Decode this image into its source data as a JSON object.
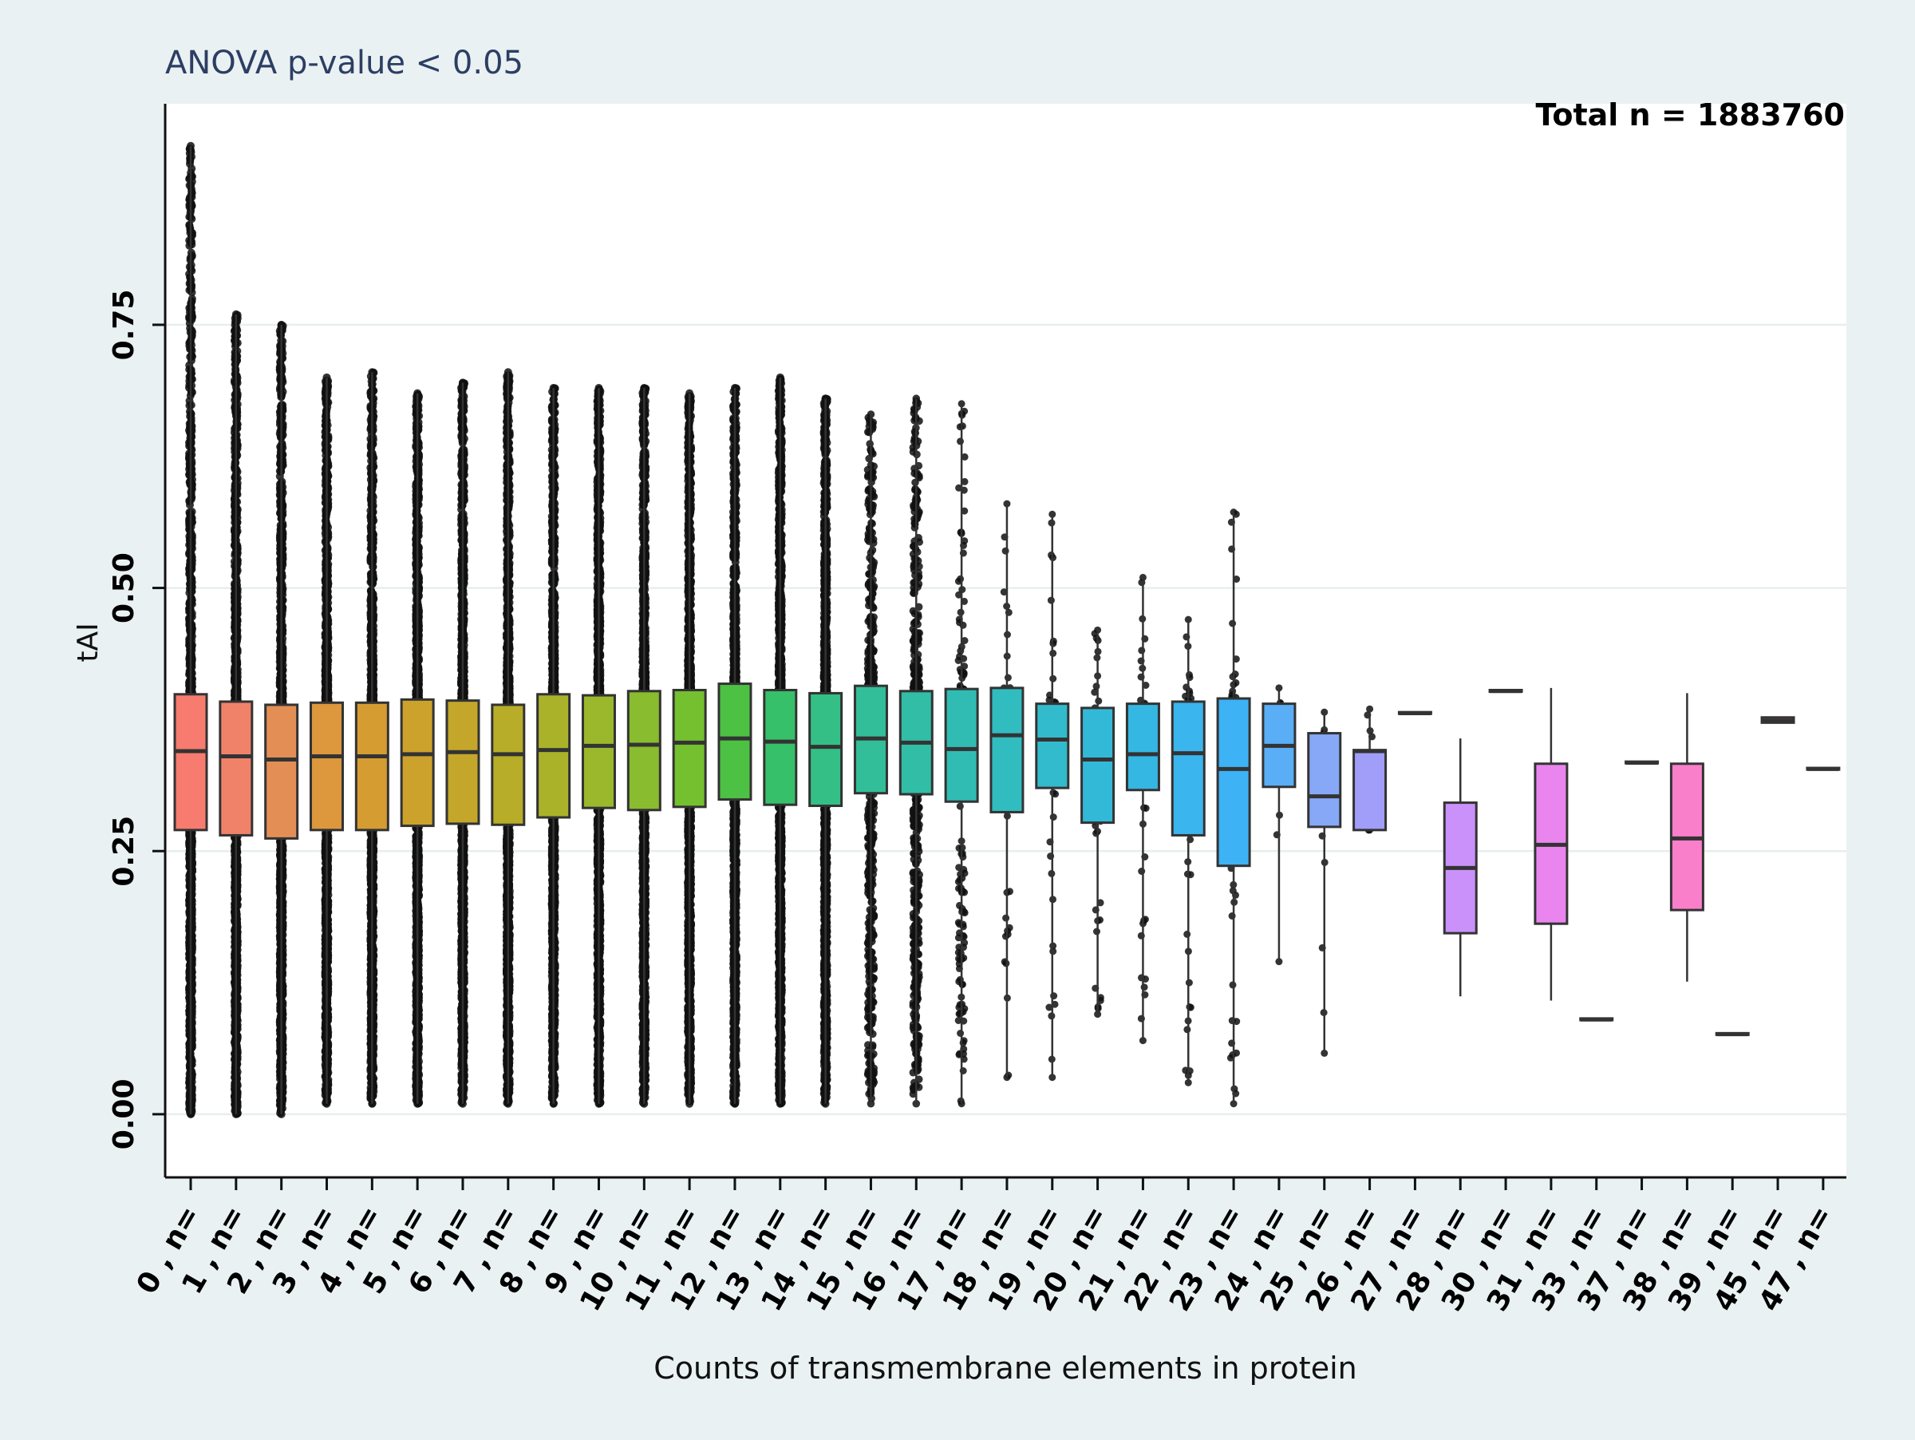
{
  "chart_data": {
    "type": "boxplot",
    "title": "ANOVA  p-value < 0.05",
    "annotation": "Total n = 1883760",
    "xlabel": "Counts of transmembrane elements in protein",
    "ylabel": "tAI",
    "ylim": [
      -0.06,
      0.96
    ],
    "yticks": [
      0.0,
      0.25,
      0.5,
      0.75
    ],
    "ytick_labels": [
      "0.00",
      "0.25",
      "0.50",
      "0.75"
    ],
    "grid": "horizontal",
    "categories": [
      "0 , n=",
      "1 , n=",
      "2 , n=",
      "3 , n=",
      "4 , n=",
      "5 , n=",
      "6 , n=",
      "7 , n=",
      "8 , n=",
      "9 , n=",
      "10 , n=",
      "11 , n=",
      "12 , n=",
      "13 , n=",
      "14 , n=",
      "15 , n=",
      "16 , n=",
      "17 , n=",
      "18 , n=",
      "19 , n=",
      "20 , n=",
      "21 , n=",
      "22 , n=",
      "23 , n=",
      "24 , n=",
      "25 , n=",
      "26 , n=",
      "27 , n=",
      "28 , n=",
      "30 , n=",
      "31 , n=",
      "33 , n=",
      "37 , n=",
      "38 , n=",
      "39 , n=",
      "45 , n=",
      "47 , n="
    ],
    "boxes": [
      {
        "q1": 0.27,
        "median": 0.345,
        "q3": 0.399,
        "pmin": 0.0,
        "pmax": 0.92,
        "color": "#f77b6e",
        "density": "dense"
      },
      {
        "q1": 0.265,
        "median": 0.34,
        "q3": 0.392,
        "pmin": 0.0,
        "pmax": 0.76,
        "color": "#f0826a",
        "density": "dense"
      },
      {
        "q1": 0.262,
        "median": 0.337,
        "q3": 0.389,
        "pmin": 0.0,
        "pmax": 0.75,
        "color": "#e38e55",
        "density": "dense"
      },
      {
        "q1": 0.27,
        "median": 0.34,
        "q3": 0.391,
        "pmin": 0.01,
        "pmax": 0.7,
        "color": "#dd973c",
        "density": "dense"
      },
      {
        "q1": 0.27,
        "median": 0.34,
        "q3": 0.391,
        "pmin": 0.01,
        "pmax": 0.705,
        "color": "#d59c32",
        "density": "dense"
      },
      {
        "q1": 0.274,
        "median": 0.342,
        "q3": 0.394,
        "pmin": 0.01,
        "pmax": 0.685,
        "color": "#cda22c",
        "density": "dense"
      },
      {
        "q1": 0.276,
        "median": 0.344,
        "q3": 0.393,
        "pmin": 0.01,
        "pmax": 0.695,
        "color": "#c4a72a",
        "density": "dense"
      },
      {
        "q1": 0.275,
        "median": 0.342,
        "q3": 0.389,
        "pmin": 0.01,
        "pmax": 0.705,
        "color": "#b8ad28",
        "density": "dense"
      },
      {
        "q1": 0.282,
        "median": 0.346,
        "q3": 0.399,
        "pmin": 0.01,
        "pmax": 0.69,
        "color": "#aab22a",
        "density": "dense"
      },
      {
        "q1": 0.291,
        "median": 0.35,
        "q3": 0.398,
        "pmin": 0.01,
        "pmax": 0.69,
        "color": "#9bb82c",
        "density": "dense"
      },
      {
        "q1": 0.289,
        "median": 0.351,
        "q3": 0.402,
        "pmin": 0.01,
        "pmax": 0.69,
        "color": "#89bc2e",
        "density": "dense"
      },
      {
        "q1": 0.292,
        "median": 0.353,
        "q3": 0.403,
        "pmin": 0.01,
        "pmax": 0.685,
        "color": "#74c02f",
        "density": "dense"
      },
      {
        "q1": 0.299,
        "median": 0.357,
        "q3": 0.409,
        "pmin": 0.01,
        "pmax": 0.69,
        "color": "#4cc143",
        "density": "dense"
      },
      {
        "q1": 0.294,
        "median": 0.354,
        "q3": 0.403,
        "pmin": 0.01,
        "pmax": 0.7,
        "color": "#37c06a",
        "density": "dense"
      },
      {
        "q1": 0.293,
        "median": 0.349,
        "q3": 0.4,
        "pmin": 0.01,
        "pmax": 0.68,
        "color": "#33bf85",
        "density": "dense"
      },
      {
        "q1": 0.305,
        "median": 0.357,
        "q3": 0.407,
        "pmin": 0.01,
        "pmax": 0.665,
        "color": "#32be98",
        "density": "medium"
      },
      {
        "q1": 0.304,
        "median": 0.353,
        "q3": 0.402,
        "pmin": 0.01,
        "pmax": 0.68,
        "color": "#31bda6",
        "density": "medium"
      },
      {
        "q1": 0.297,
        "median": 0.347,
        "q3": 0.404,
        "pmin": 0.01,
        "pmax": 0.675,
        "color": "#31bcb3",
        "density": "light"
      },
      {
        "q1": 0.287,
        "median": 0.36,
        "q3": 0.405,
        "pmin": 0.035,
        "pmax": 0.58,
        "color": "#31bcc0",
        "density": "sparse"
      },
      {
        "q1": 0.31,
        "median": 0.356,
        "q3": 0.39,
        "pmin": 0.035,
        "pmax": 0.57,
        "color": "#32bbcc",
        "density": "sparse"
      },
      {
        "q1": 0.277,
        "median": 0.337,
        "q3": 0.386,
        "pmin": 0.095,
        "pmax": 0.46,
        "color": "#33b9d8",
        "density": "sparse"
      },
      {
        "q1": 0.308,
        "median": 0.342,
        "q3": 0.39,
        "pmin": 0.07,
        "pmax": 0.51,
        "color": "#35b7e3",
        "density": "sparse"
      },
      {
        "q1": 0.265,
        "median": 0.343,
        "q3": 0.392,
        "pmin": 0.03,
        "pmax": 0.47,
        "color": "#3ab5ee",
        "density": "sparse"
      },
      {
        "q1": 0.236,
        "median": 0.328,
        "q3": 0.395,
        "pmin": 0.01,
        "pmax": 0.572,
        "color": "#3db2f5",
        "density": "sparse"
      },
      {
        "q1": 0.311,
        "median": 0.35,
        "q3": 0.39,
        "pmin": 0.145,
        "pmax": 0.405,
        "color": "#59aef6",
        "density": "few"
      },
      {
        "q1": 0.273,
        "median": 0.302,
        "q3": 0.362,
        "pmin": 0.058,
        "pmax": 0.382,
        "color": "#86a8f7",
        "density": "few"
      },
      {
        "q1": 0.27,
        "median": 0.345,
        "q3": 0.346,
        "pmin": 0.27,
        "pmax": 0.385,
        "color": "#a09ef9",
        "density": "few"
      },
      {
        "q1": 0.381,
        "median": 0.381,
        "q3": 0.382,
        "pmin": 0.381,
        "pmax": 0.382,
        "color": "#b197fa",
        "density": "none"
      },
      {
        "q1": 0.172,
        "median": 0.234,
        "q3": 0.296,
        "pmin": 0.112,
        "pmax": 0.357,
        "color": "#c991f9",
        "density": "none"
      },
      {
        "q1": 0.402,
        "median": 0.402,
        "q3": 0.403,
        "pmin": 0.402,
        "pmax": 0.403,
        "color": "#d98cf8",
        "density": "none"
      },
      {
        "q1": 0.181,
        "median": 0.256,
        "q3": 0.333,
        "pmin": 0.108,
        "pmax": 0.405,
        "color": "#ea85ef",
        "density": "none"
      },
      {
        "q1": 0.09,
        "median": 0.09,
        "q3": 0.091,
        "pmin": 0.09,
        "pmax": 0.091,
        "color": "#f283e4",
        "density": "none"
      },
      {
        "q1": 0.334,
        "median": 0.334,
        "q3": 0.335,
        "pmin": 0.334,
        "pmax": 0.335,
        "color": "#f781d9",
        "density": "none"
      },
      {
        "q1": 0.194,
        "median": 0.262,
        "q3": 0.333,
        "pmin": 0.126,
        "pmax": 0.4,
        "color": "#fa7fcb",
        "density": "none"
      },
      {
        "q1": 0.076,
        "median": 0.076,
        "q3": 0.077,
        "pmin": 0.076,
        "pmax": 0.077,
        "color": "#fb7dbf",
        "density": "none"
      },
      {
        "q1": 0.372,
        "median": 0.374,
        "q3": 0.377,
        "pmin": 0.372,
        "pmax": 0.377,
        "color": "#fb7bb2",
        "density": "none"
      },
      {
        "q1": 0.328,
        "median": 0.328,
        "q3": 0.329,
        "pmin": 0.328,
        "pmax": 0.329,
        "color": "#fb7aa5",
        "density": "none"
      }
    ]
  }
}
